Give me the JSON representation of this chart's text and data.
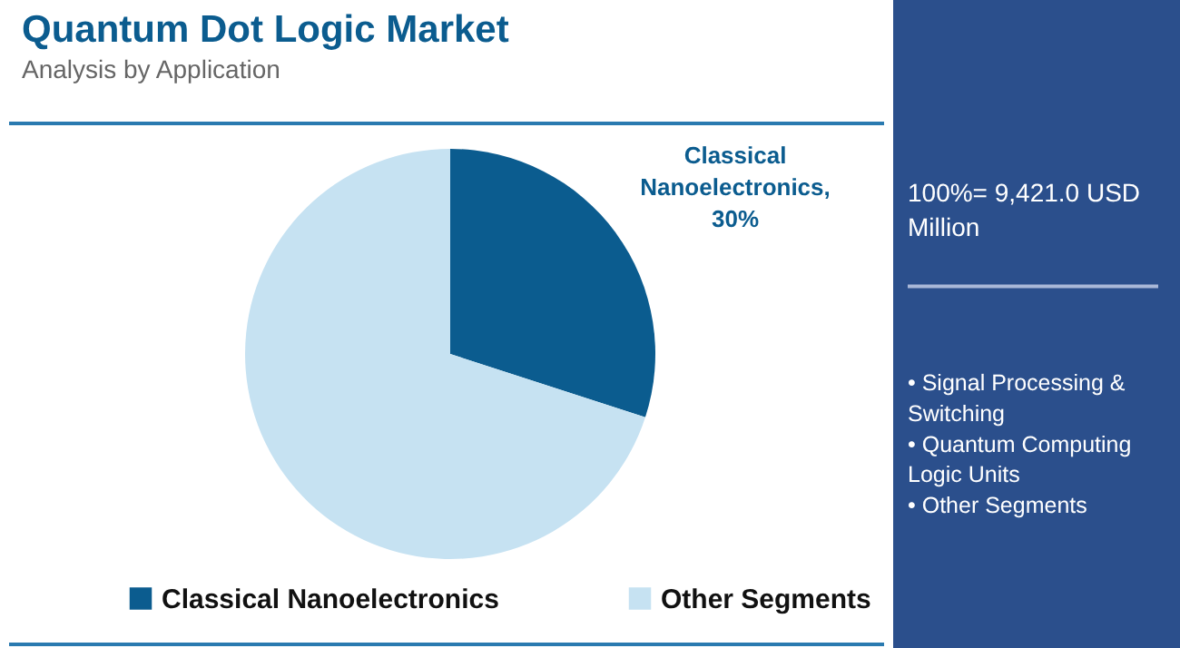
{
  "chart_data": {
    "type": "pie",
    "title": "Quantum Dot Logic Market",
    "subtitle": "Analysis by Application",
    "categories": [
      "Classical Nanoelectronics",
      "Other Segments"
    ],
    "values": [
      30,
      70
    ],
    "colors": [
      "#0b5c8f",
      "#c6e2f2"
    ],
    "value_labels": [
      "Classical Nanoelectronics, 30%",
      null
    ],
    "legend": "bottom",
    "annotations": [
      "100%= 9,421.0 USD Million",
      "• Signal Processing & Switching",
      "• Quantum Computing Logic Units",
      "• Other Segments"
    ]
  }
}
